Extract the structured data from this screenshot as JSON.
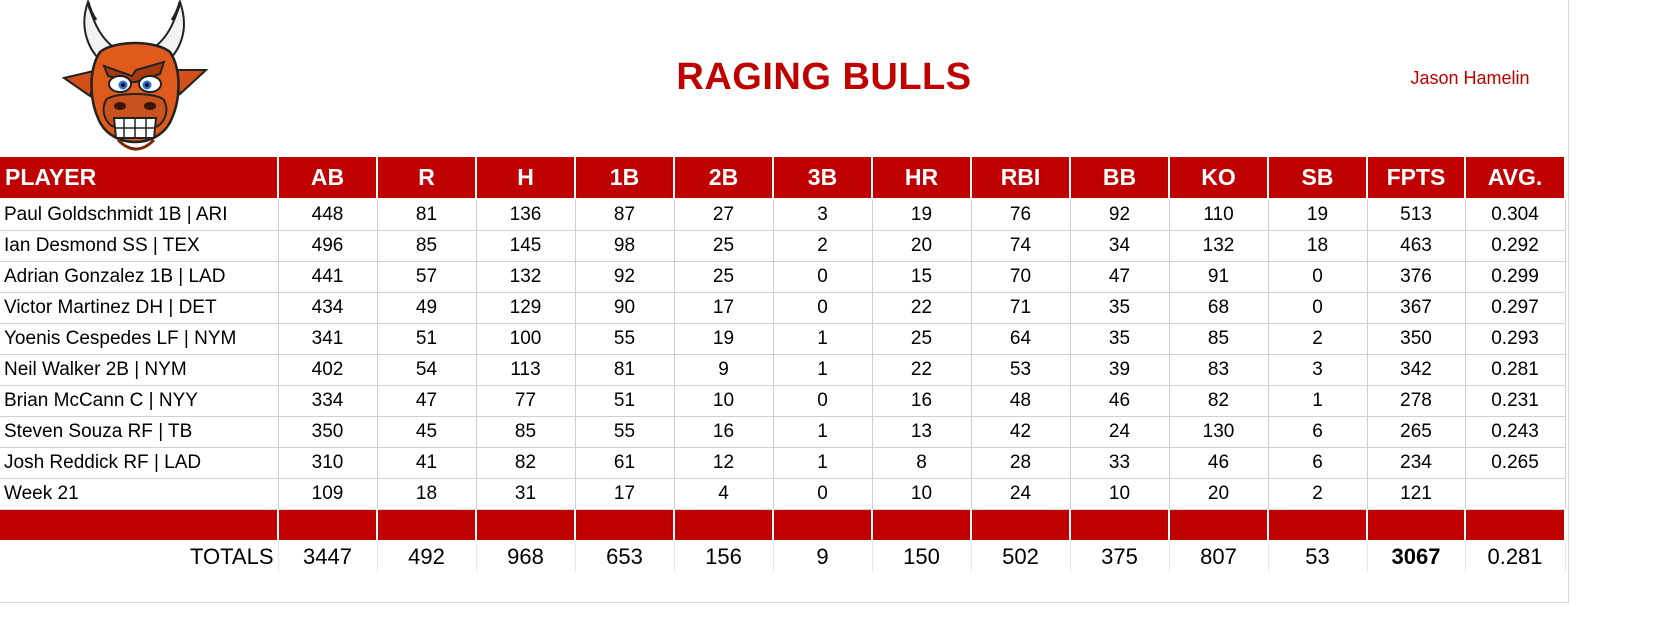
{
  "team": {
    "name": "RAGING BULLS",
    "owner": "Jason Hamelin",
    "logo_icon": "raging-bull-mascot"
  },
  "colors": {
    "header_bg": "#c00000",
    "title": "#c00000"
  },
  "columns": [
    "PLAYER",
    "AB",
    "R",
    "H",
    "1B",
    "2B",
    "3B",
    "HR",
    "RBI",
    "BB",
    "KO",
    "SB",
    "FPTS",
    "AVG."
  ],
  "rows": [
    [
      "Paul Goldschmidt 1B | ARI",
      "448",
      "81",
      "136",
      "87",
      "27",
      "3",
      "19",
      "76",
      "92",
      "110",
      "19",
      "513",
      "0.304"
    ],
    [
      "Ian Desmond SS | TEX",
      "496",
      "85",
      "145",
      "98",
      "25",
      "2",
      "20",
      "74",
      "34",
      "132",
      "18",
      "463",
      "0.292"
    ],
    [
      "Adrian Gonzalez 1B | LAD",
      "441",
      "57",
      "132",
      "92",
      "25",
      "0",
      "15",
      "70",
      "47",
      "91",
      "0",
      "376",
      "0.299"
    ],
    [
      "Victor Martinez DH | DET",
      "434",
      "49",
      "129",
      "90",
      "17",
      "0",
      "22",
      "71",
      "35",
      "68",
      "0",
      "367",
      "0.297"
    ],
    [
      "Yoenis Cespedes LF | NYM",
      "341",
      "51",
      "100",
      "55",
      "19",
      "1",
      "25",
      "64",
      "35",
      "85",
      "2",
      "350",
      "0.293"
    ],
    [
      "Neil Walker 2B | NYM",
      "402",
      "54",
      "113",
      "81",
      "9",
      "1",
      "22",
      "53",
      "39",
      "83",
      "3",
      "342",
      "0.281"
    ],
    [
      "Brian McCann C | NYY",
      "334",
      "47",
      "77",
      "51",
      "10",
      "0",
      "16",
      "48",
      "46",
      "82",
      "1",
      "278",
      "0.231"
    ],
    [
      "Steven Souza RF | TB",
      "350",
      "45",
      "85",
      "55",
      "16",
      "1",
      "13",
      "42",
      "24",
      "130",
      "6",
      "265",
      "0.243"
    ],
    [
      "Josh Reddick RF | LAD",
      "310",
      "41",
      "82",
      "61",
      "12",
      "1",
      "8",
      "28",
      "33",
      "46",
      "6",
      "234",
      "0.265"
    ],
    [
      "Week 21",
      "109",
      "18",
      "31",
      "17",
      "4",
      "0",
      "10",
      "24",
      "10",
      "20",
      "2",
      "121",
      ""
    ]
  ],
  "totals": [
    "TOTALS",
    "3447",
    "492",
    "968",
    "653",
    "156",
    "9",
    "150",
    "502",
    "375",
    "807",
    "53",
    "3067",
    "0.281"
  ]
}
